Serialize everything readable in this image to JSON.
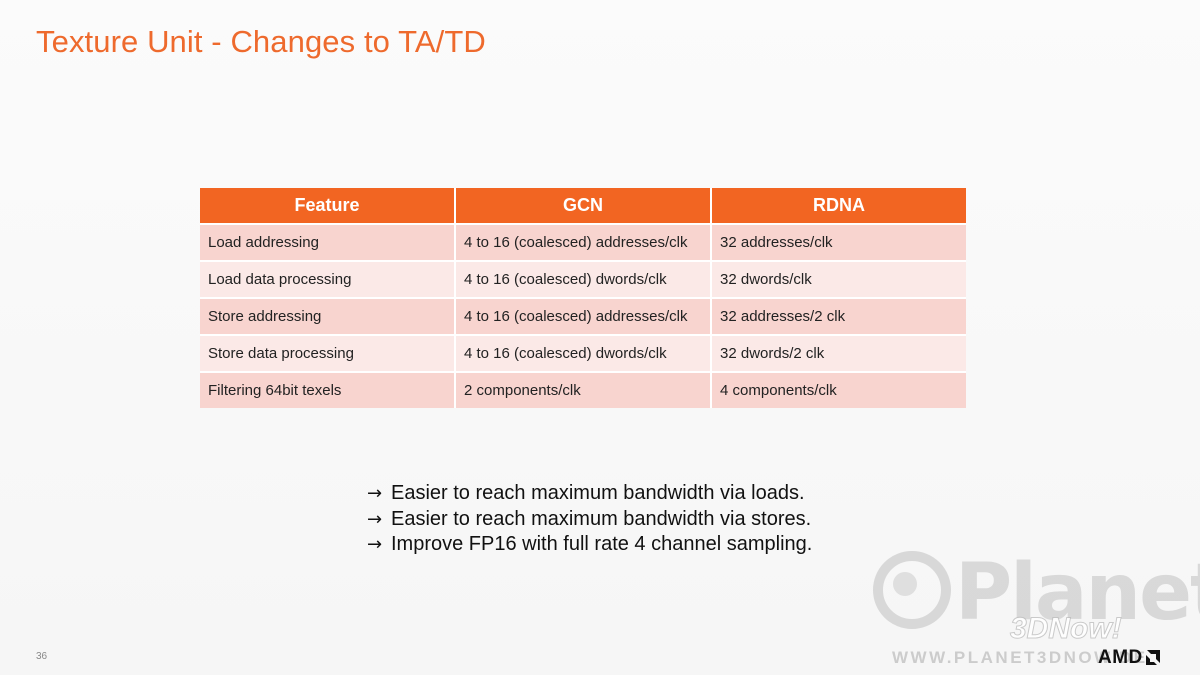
{
  "slide": {
    "title": "Texture Unit - Changes to TA/TD",
    "page_number": "36"
  },
  "table": {
    "headers": [
      "Feature",
      "GCN",
      "RDNA"
    ],
    "rows": [
      [
        "Load addressing",
        "4 to 16 (coalesced) addresses/clk",
        "32 addresses/clk"
      ],
      [
        "Load data processing",
        "4 to 16 (coalesced) dwords/clk",
        "32 dwords/clk"
      ],
      [
        "Store addressing",
        "4 to 16 (coalesced) addresses/clk",
        "32 addresses/2 clk"
      ],
      [
        "Store data processing",
        "4 to 16 (coalesced) dwords/clk",
        "32 dwords/2 clk"
      ],
      [
        "Filtering 64bit texels",
        "2 components/clk",
        "4 components/clk"
      ]
    ]
  },
  "bullets": [
    {
      "icon": "arrow-right-icon",
      "arrow": "→",
      "text": "Easier to reach maximum bandwidth via loads."
    },
    {
      "icon": "arrow-right-icon",
      "arrow": "→",
      "text": "Easier to reach maximum bandwidth via stores."
    },
    {
      "icon": "arrow-right-icon",
      "arrow": "→",
      "text": "Improve FP16 with full rate 4 channel sampling."
    }
  ],
  "watermark": {
    "word": "Planet",
    "tag": "3DNow!",
    "url": "WWW.PLANET3DNOW.DE"
  },
  "brand": {
    "logo_text": "AMD",
    "accent_color": "#f26522",
    "title_color": "#ee6a2d"
  }
}
